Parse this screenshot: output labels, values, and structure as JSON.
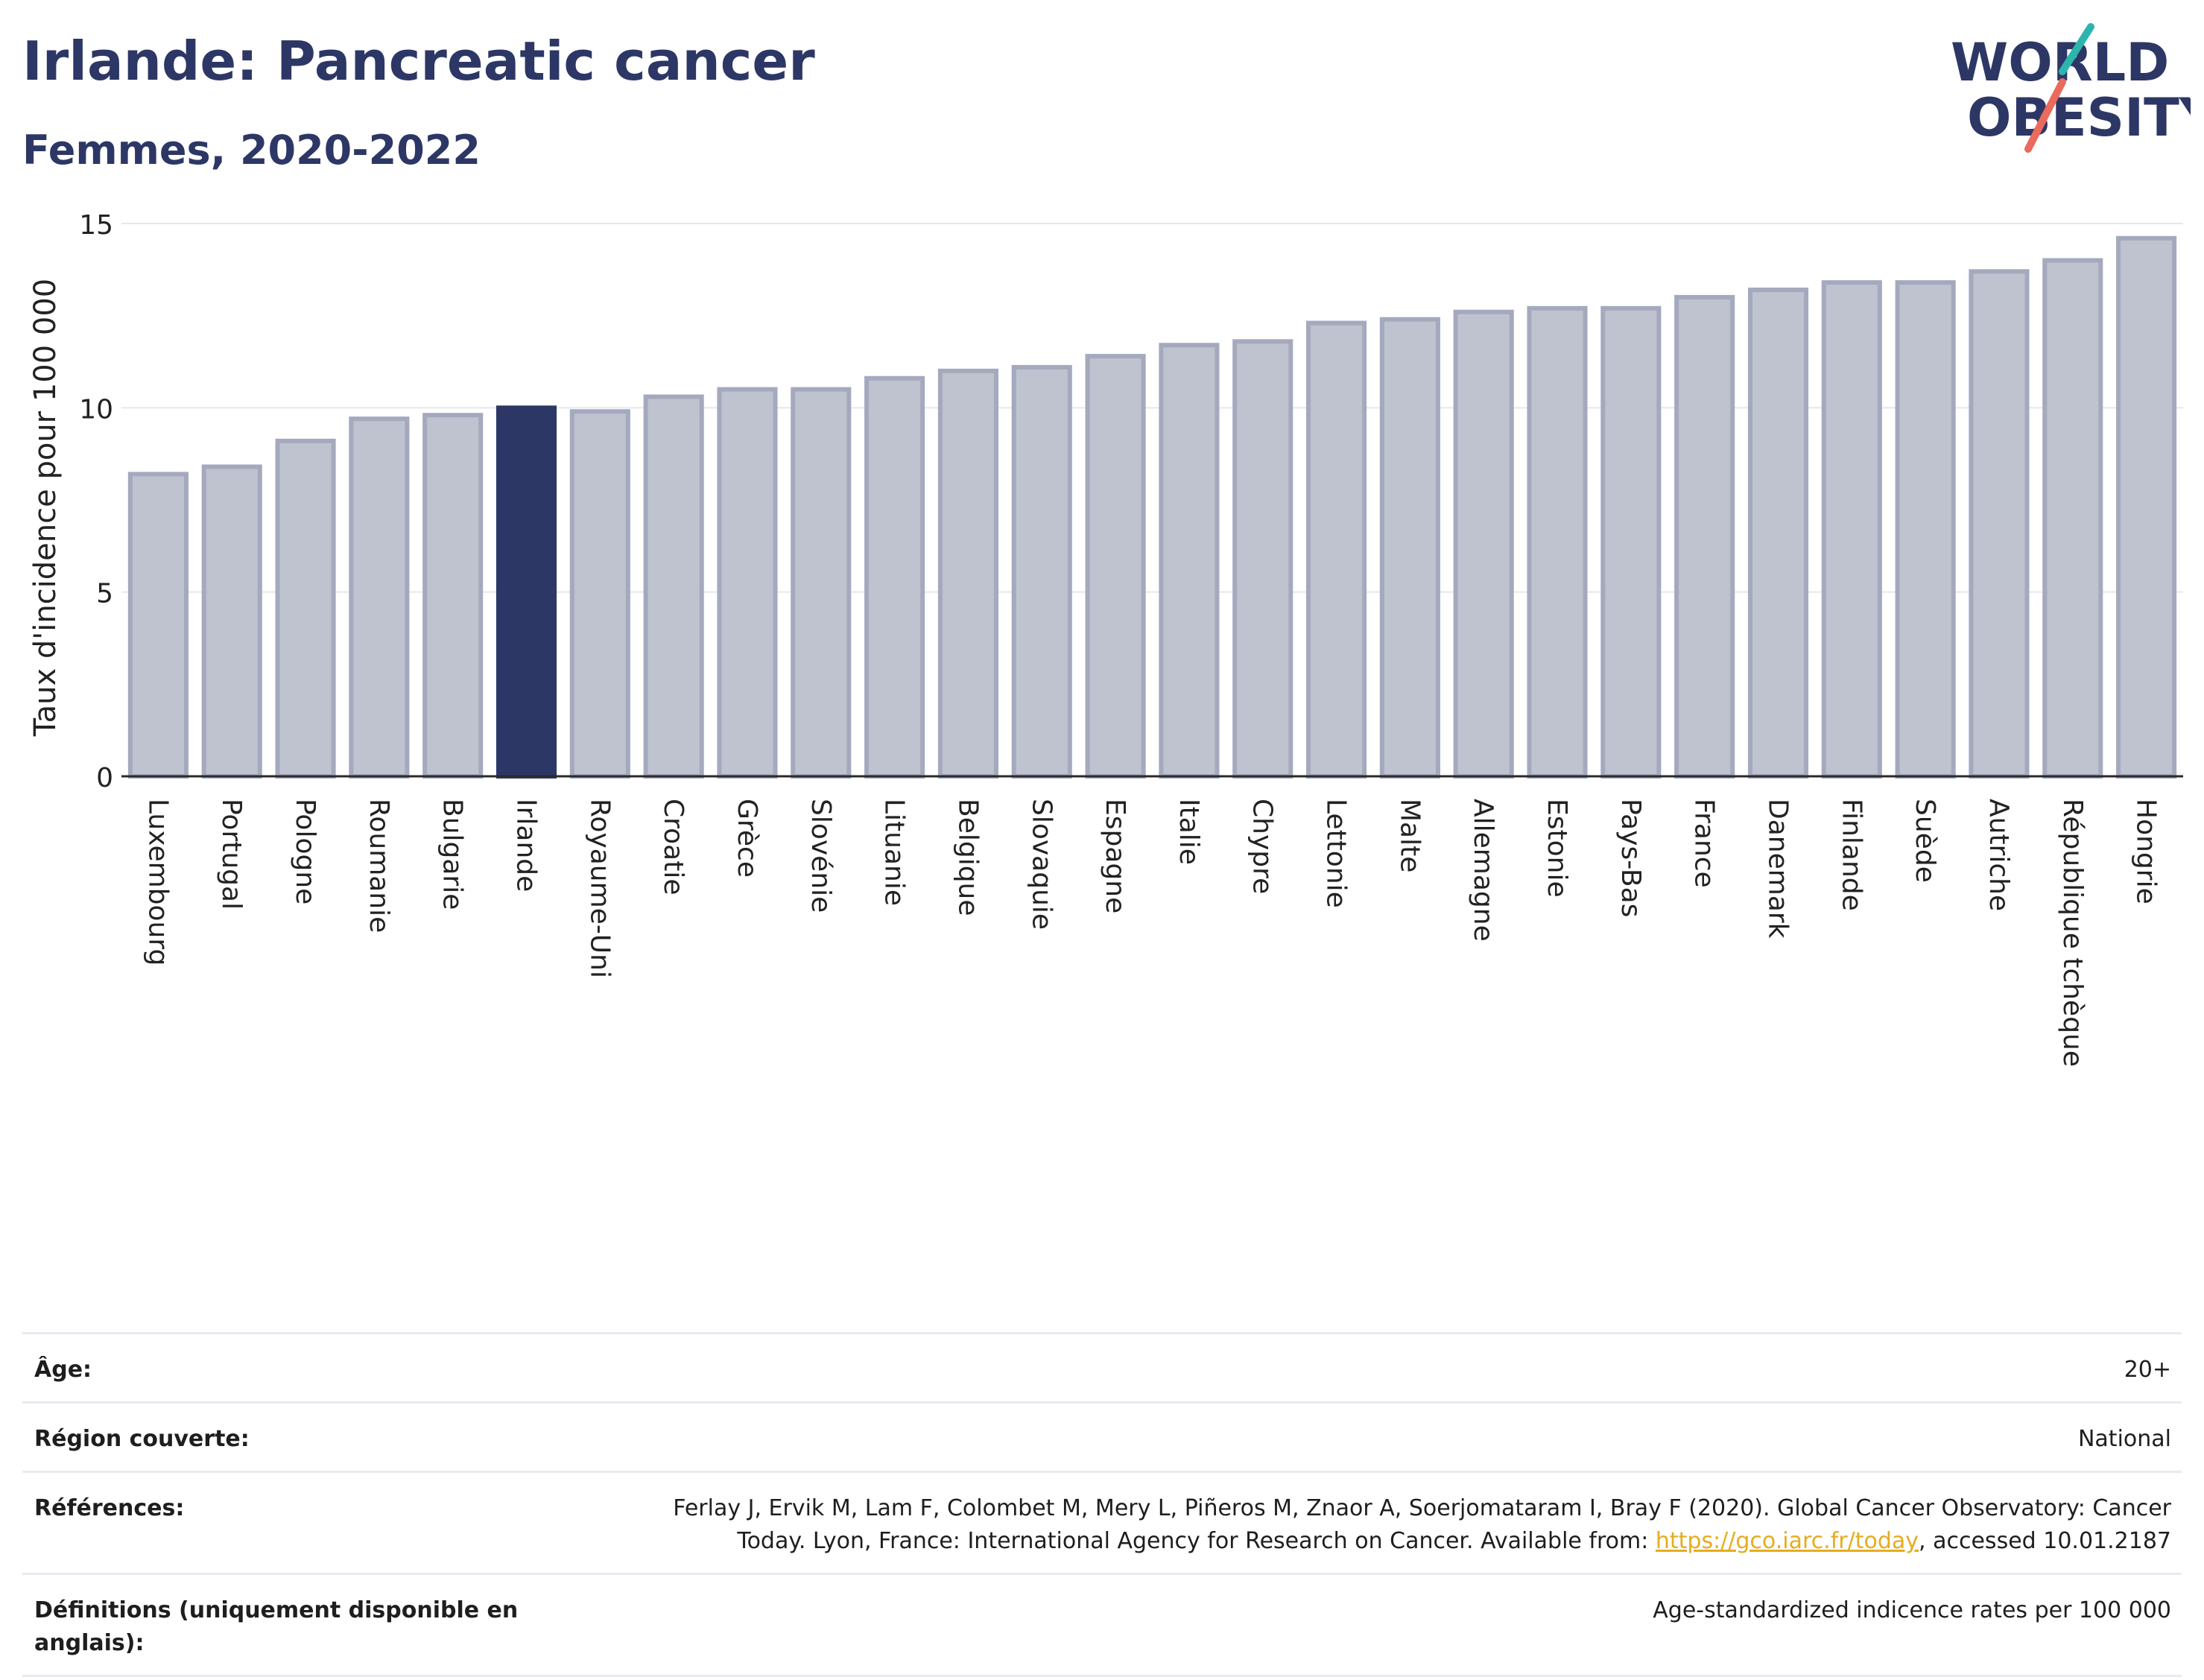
{
  "header": {
    "title": "Irlande: Pancreatic cancer",
    "subtitle": "Femmes, 2020-2022"
  },
  "logo": {
    "line1": "WORLD",
    "line2": "OBESITY"
  },
  "colors": {
    "bar": "#bfc2cf",
    "bar_stroke": "#a5a9bd",
    "highlight": "#2d3766",
    "slash_teal": "#2bb5ad",
    "slash_coral": "#ea6a5c"
  },
  "chart_data": {
    "type": "bar",
    "title": "Irlande: Pancreatic cancer",
    "subtitle": "Femmes, 2020-2022",
    "xlabel": "",
    "ylabel": "Taux d'incidence pour 100 000",
    "ylim": [
      0,
      15
    ],
    "yticks": [
      0,
      5,
      10,
      15
    ],
    "grid": true,
    "highlight": "Irlande",
    "categories": [
      "Luxembourg",
      "Portugal",
      "Pologne",
      "Roumanie",
      "Bulgarie",
      "Irlande",
      "Royaume-Uni",
      "Croatie",
      "Grèce",
      "Slovénie",
      "Lituanie",
      "Belgique",
      "Slovaquie",
      "Espagne",
      "Italie",
      "Chypre",
      "Lettonie",
      "Malte",
      "Allemagne",
      "Estonie",
      "Pays-Bas",
      "France",
      "Danemark",
      "Finlande",
      "Suède",
      "Autriche",
      "République tchèque",
      "Hongrie"
    ],
    "values": [
      8.2,
      8.4,
      9.1,
      9.7,
      9.8,
      10.0,
      9.9,
      10.3,
      10.5,
      10.5,
      10.8,
      11.0,
      11.1,
      11.4,
      11.7,
      11.8,
      12.3,
      12.4,
      12.6,
      12.7,
      12.7,
      13.0,
      13.2,
      13.4,
      13.4,
      13.7,
      14.0,
      14.6
    ]
  },
  "meta": {
    "age_label": "Âge:",
    "age_value": "20+",
    "region_label": "Région couverte:",
    "region_value": "National",
    "refs_label": "Références:",
    "refs_text": "Ferlay J, Ervik M, Lam F, Colombet M, Mery L, Piñeros M, Znaor A, Soerjomataram I, Bray F (2020). Global Cancer Observatory: Cancer Today. Lyon, France: International Agency for Research on Cancer. Available from: ",
    "refs_link": "https://gco.iarc.fr/today",
    "refs_suffix": ", accessed 10.01.2187",
    "defs_label": "Définitions (uniquement disponible en anglais):",
    "defs_value": "Age-standardized indicence rates per 100 000"
  }
}
